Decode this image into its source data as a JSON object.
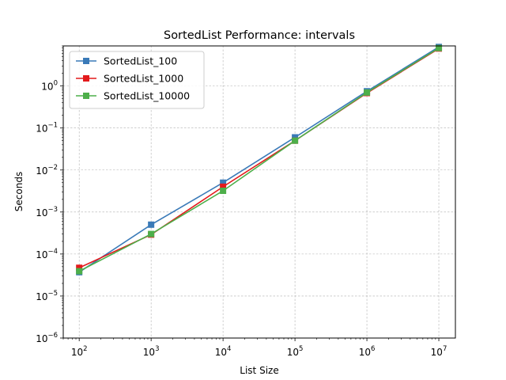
{
  "chart_data": {
    "type": "line",
    "title": "SortedList Performance: intervals",
    "xlabel": "List Size",
    "ylabel": "Seconds",
    "xscale": "log",
    "yscale": "log",
    "xlim": [
      60,
      17000000
    ],
    "ylim": [
      1e-06,
      9
    ],
    "grid": true,
    "legend_position": "top-left",
    "x_ticks": [
      {
        "value": 100,
        "base": "10",
        "exp": "2"
      },
      {
        "value": 1000,
        "base": "10",
        "exp": "3"
      },
      {
        "value": 10000,
        "base": "10",
        "exp": "4"
      },
      {
        "value": 100000,
        "base": "10",
        "exp": "5"
      },
      {
        "value": 1000000,
        "base": "10",
        "exp": "6"
      },
      {
        "value": 10000000,
        "base": "10",
        "exp": "7"
      }
    ],
    "y_ticks": [
      {
        "value": 1e-06,
        "base": "10",
        "exp": "−6"
      },
      {
        "value": 1e-05,
        "base": "10",
        "exp": "−5"
      },
      {
        "value": 0.0001,
        "base": "10",
        "exp": "−4"
      },
      {
        "value": 0.001,
        "base": "10",
        "exp": "−3"
      },
      {
        "value": 0.01,
        "base": "10",
        "exp": "−2"
      },
      {
        "value": 0.1,
        "base": "10",
        "exp": "−1"
      },
      {
        "value": 1,
        "base": "10",
        "exp": "0"
      }
    ],
    "x": [
      100,
      1000,
      10000,
      100000,
      1000000,
      10000000
    ],
    "series": [
      {
        "name": "SortedList_100",
        "color": "#3a7ab8",
        "values": [
          3.7e-05,
          0.0005,
          0.005,
          0.06,
          0.75,
          8.5
        ]
      },
      {
        "name": "SortedList_1000",
        "color": "#e31a1c",
        "values": [
          4.7e-05,
          0.00029,
          0.004,
          0.05,
          0.68,
          7.8
        ]
      },
      {
        "name": "SortedList_10000",
        "color": "#4daf4a",
        "values": [
          3.9e-05,
          0.0003,
          0.0032,
          0.05,
          0.7,
          8.0
        ]
      }
    ]
  }
}
